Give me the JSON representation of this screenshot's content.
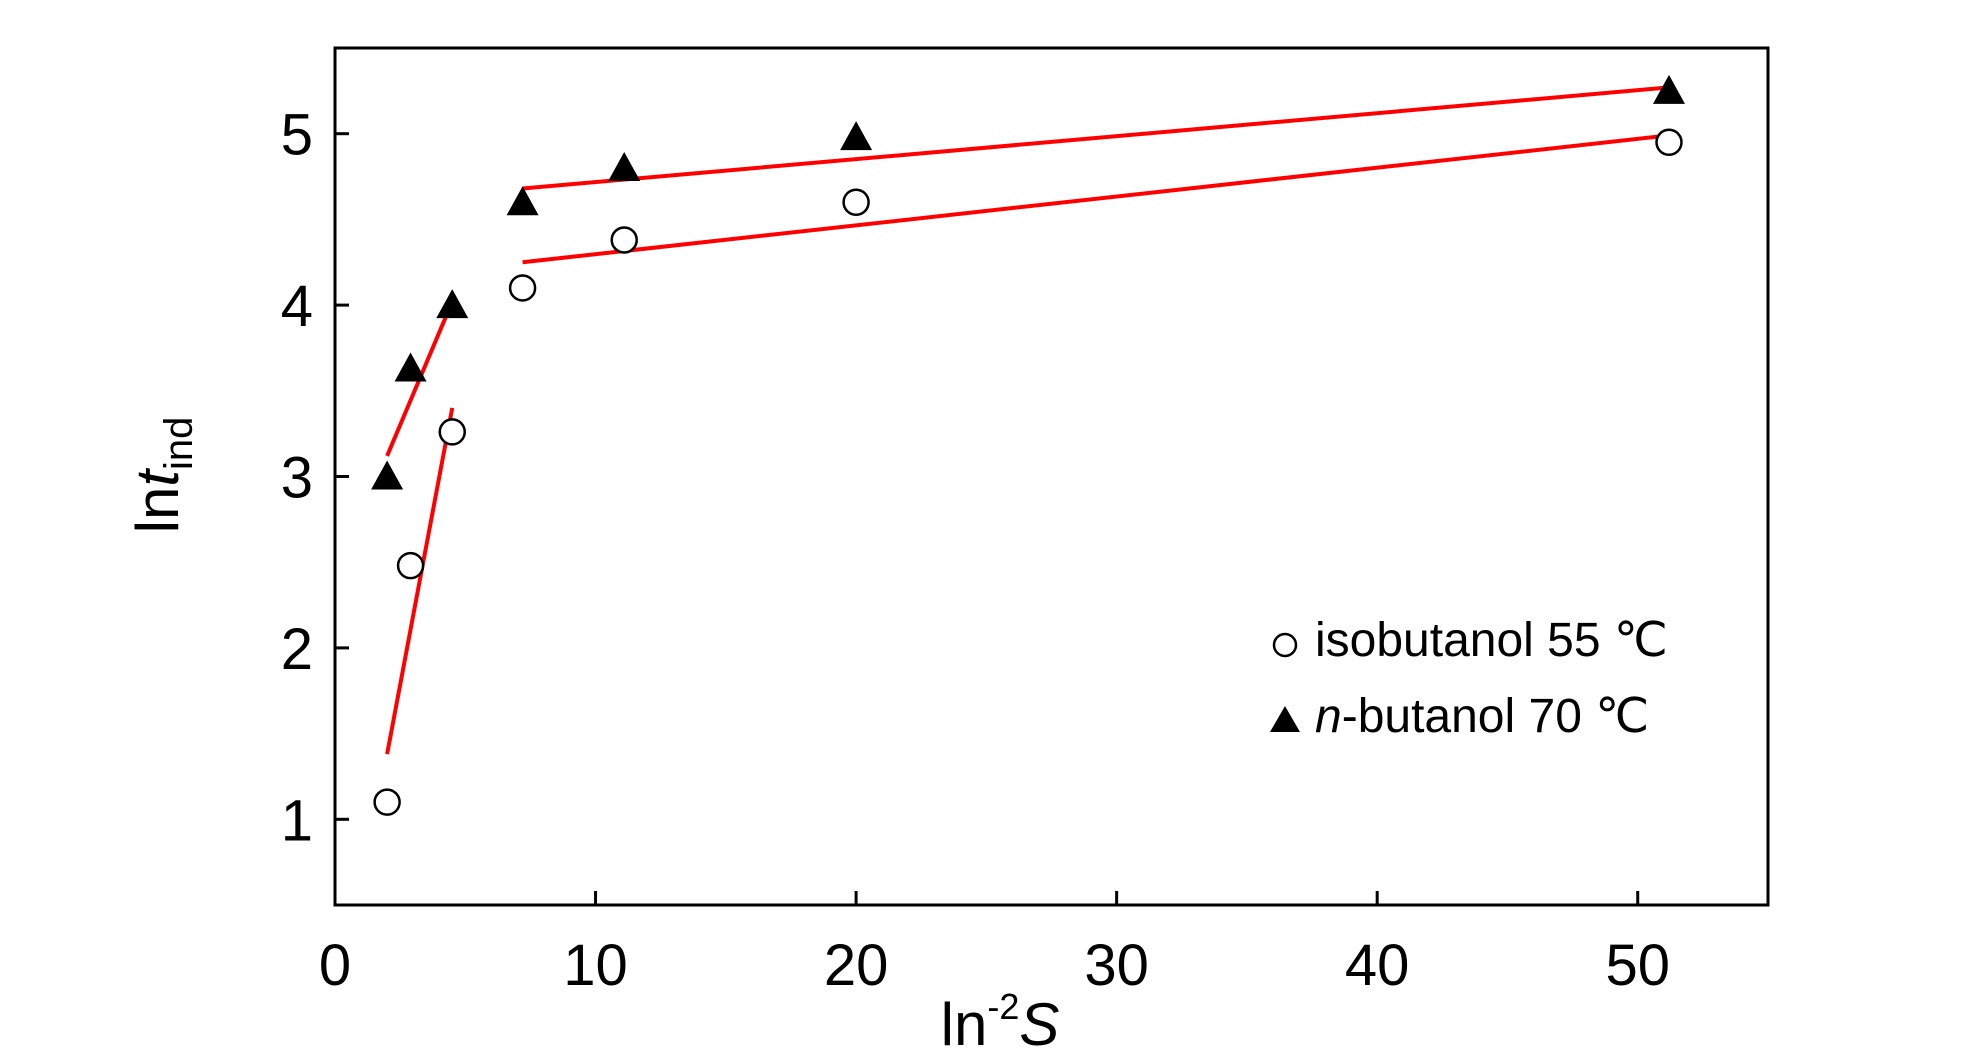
{
  "chart_data": {
    "type": "scatter",
    "xlim": [
      0,
      55
    ],
    "ylim": [
      0.5,
      5.5
    ],
    "xticks": [
      0,
      10,
      20,
      30,
      40,
      50
    ],
    "yticks": [
      1,
      2,
      3,
      4,
      5
    ],
    "xlabel": {
      "main": "ln",
      "sup": "-2",
      "var": "S"
    },
    "ylabel": {
      "main": "ln",
      "var": "t",
      "sub": "ind"
    },
    "grid": false,
    "legend_position": "bottom-right",
    "series": [
      {
        "name": "isobutanol 55 ℃",
        "marker": "open-circle",
        "color": "#000000",
        "points": [
          [
            2.0,
            1.1
          ],
          [
            2.9,
            2.48
          ],
          [
            4.5,
            3.26
          ],
          [
            7.2,
            4.1
          ],
          [
            11.1,
            4.38
          ],
          [
            20.0,
            4.6
          ],
          [
            51.2,
            4.95
          ]
        ]
      },
      {
        "name_parts": {
          "italic": "n",
          "rest": "-butanol 70 ℃"
        },
        "marker": "filled-triangle",
        "color": "#000000",
        "points": [
          [
            2.0,
            3.0
          ],
          [
            2.9,
            3.63
          ],
          [
            4.5,
            4.0
          ],
          [
            7.2,
            4.6
          ],
          [
            11.1,
            4.8
          ],
          [
            20.0,
            4.98
          ],
          [
            51.2,
            5.25
          ]
        ]
      }
    ],
    "fit_lines": [
      {
        "color": "#ff0000",
        "from": [
          2.0,
          1.38
        ],
        "to": [
          4.5,
          3.4
        ]
      },
      {
        "color": "#ff0000",
        "from": [
          2.0,
          3.12
        ],
        "to": [
          4.5,
          4.02
        ]
      },
      {
        "color": "#ff0000",
        "from": [
          7.2,
          4.25
        ],
        "to": [
          51.2,
          4.99
        ]
      },
      {
        "color": "#ff0000",
        "from": [
          7.2,
          4.68
        ],
        "to": [
          51.2,
          5.27
        ]
      }
    ]
  }
}
